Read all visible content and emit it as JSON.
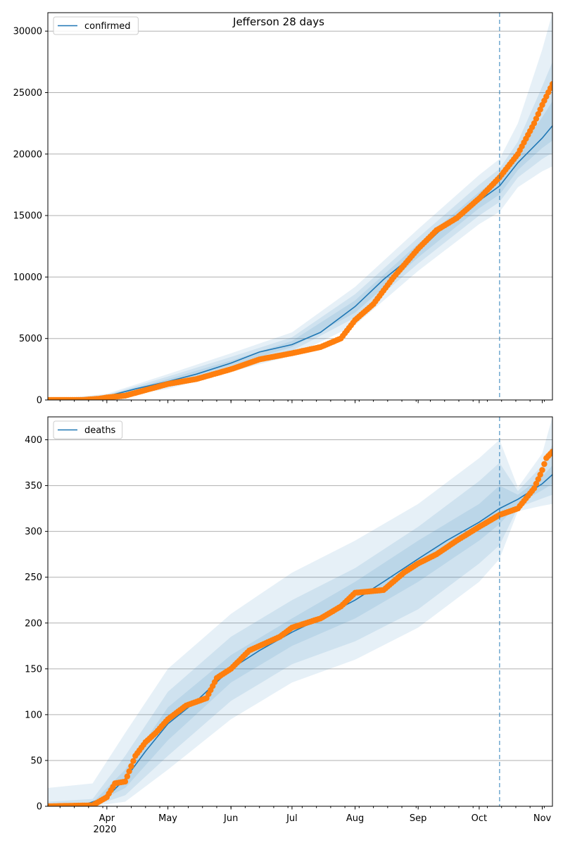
{
  "figure": {
    "title": "Jefferson 28 days",
    "year_label": "2020"
  },
  "chart_data": [
    {
      "name": "confirmed",
      "type": "line",
      "legend": "confirmed",
      "legend_position": "upper left",
      "grid": "horizontal",
      "xlim": [
        "2020-03-03",
        "2020-11-06"
      ],
      "ylim": [
        0,
        31500
      ],
      "yticks": [
        0,
        5000,
        10000,
        15000,
        20000,
        25000,
        30000
      ],
      "month_ticks": [
        {
          "date": "2020-04-01",
          "label": "Apr"
        },
        {
          "date": "2020-05-01",
          "label": "May"
        },
        {
          "date": "2020-06-01",
          "label": "Jun"
        },
        {
          "date": "2020-07-01",
          "label": "Jul"
        },
        {
          "date": "2020-08-01",
          "label": "Aug"
        },
        {
          "date": "2020-09-01",
          "label": "Sep"
        },
        {
          "date": "2020-10-01",
          "label": "Oct"
        },
        {
          "date": "2020-11-01",
          "label": "Nov"
        }
      ],
      "forecast_start": "2020-10-11",
      "colors": {
        "model": "#1f77b4",
        "observed": "#ff7f0e",
        "band": "#1f77b4"
      },
      "model": {
        "x": [
          "2020-03-03",
          "2020-03-20",
          "2020-04-01",
          "2020-04-15",
          "2020-05-01",
          "2020-05-15",
          "2020-06-01",
          "2020-06-15",
          "2020-07-01",
          "2020-07-15",
          "2020-08-01",
          "2020-08-15",
          "2020-09-01",
          "2020-09-15",
          "2020-10-01",
          "2020-10-11"
        ],
        "y": [
          0,
          50,
          300,
          900,
          1500,
          2100,
          3000,
          3900,
          4500,
          5500,
          7600,
          9800,
          12100,
          14300,
          16200,
          17400
        ]
      },
      "forecast": {
        "x": [
          "2020-10-11",
          "2020-10-20",
          "2020-11-01",
          "2020-11-06"
        ],
        "y": [
          17400,
          19300,
          21300,
          22300
        ]
      },
      "bands": [
        {
          "x": [
            "2020-03-03",
            "2020-04-01",
            "2020-05-01",
            "2020-06-01",
            "2020-07-01",
            "2020-08-01",
            "2020-09-01",
            "2020-10-01",
            "2020-10-11",
            "2020-10-20",
            "2020-11-01",
            "2020-11-06"
          ],
          "low": [
            0,
            100,
            900,
            2300,
            3600,
            6100,
            10500,
            14300,
            15300,
            17300,
            18600,
            19000
          ],
          "high": [
            0,
            500,
            2100,
            3800,
            5500,
            9200,
            13900,
            18300,
            19600,
            22500,
            28500,
            31500
          ]
        },
        {
          "x": [
            "2020-03-03",
            "2020-04-01",
            "2020-05-01",
            "2020-06-01",
            "2020-07-01",
            "2020-08-01",
            "2020-09-01",
            "2020-10-01",
            "2020-10-11",
            "2020-10-20",
            "2020-11-01",
            "2020-11-06"
          ],
          "low": [
            0,
            180,
            1100,
            2600,
            4000,
            6700,
            11100,
            15000,
            16100,
            18100,
            19600,
            20100
          ],
          "high": [
            0,
            420,
            1900,
            3500,
            5100,
            8600,
            13200,
            17500,
            18800,
            21000,
            25500,
            27500
          ]
        },
        {
          "x": [
            "2020-03-03",
            "2020-04-01",
            "2020-05-01",
            "2020-06-01",
            "2020-07-01",
            "2020-08-01",
            "2020-09-01",
            "2020-10-01",
            "2020-10-11",
            "2020-10-20",
            "2020-11-01",
            "2020-11-06"
          ],
          "low": [
            0,
            240,
            1300,
            2800,
            4300,
            7100,
            11600,
            15600,
            16700,
            18700,
            20500,
            21100
          ],
          "high": [
            0,
            360,
            1700,
            3200,
            4800,
            8100,
            12700,
            16900,
            18200,
            20200,
            23000,
            24300
          ]
        }
      ],
      "observed": {
        "anchors_x": [
          "2020-03-03",
          "2020-03-20",
          "2020-03-28",
          "2020-04-01",
          "2020-04-10",
          "2020-04-20",
          "2020-05-01",
          "2020-05-15",
          "2020-06-01",
          "2020-06-15",
          "2020-07-01",
          "2020-07-15",
          "2020-07-25",
          "2020-08-01",
          "2020-08-10",
          "2020-08-20",
          "2020-09-01",
          "2020-09-10",
          "2020-09-20",
          "2020-10-01",
          "2020-10-11",
          "2020-10-20",
          "2020-10-28",
          "2020-11-01",
          "2020-11-06"
        ],
        "anchors_y": [
          0,
          0,
          100,
          200,
          350,
          800,
          1300,
          1700,
          2500,
          3300,
          3800,
          4300,
          5000,
          6500,
          7800,
          10000,
          12300,
          13800,
          14800,
          16400,
          18100,
          20000,
          22500,
          24000,
          25700
        ]
      }
    },
    {
      "name": "deaths",
      "type": "line",
      "legend": "deaths",
      "legend_position": "upper left",
      "grid": "horizontal",
      "xlim": [
        "2020-03-03",
        "2020-11-06"
      ],
      "ylim": [
        0,
        425
      ],
      "yticks": [
        0,
        50,
        100,
        150,
        200,
        250,
        300,
        350,
        400
      ],
      "month_ticks": [
        {
          "date": "2020-04-01",
          "label": "Apr"
        },
        {
          "date": "2020-05-01",
          "label": "May"
        },
        {
          "date": "2020-06-01",
          "label": "Jun"
        },
        {
          "date": "2020-07-01",
          "label": "Jul"
        },
        {
          "date": "2020-08-01",
          "label": "Aug"
        },
        {
          "date": "2020-09-01",
          "label": "Sep"
        },
        {
          "date": "2020-10-01",
          "label": "Oct"
        },
        {
          "date": "2020-11-01",
          "label": "Nov"
        }
      ],
      "forecast_start": "2020-10-11",
      "colors": {
        "model": "#1f77b4",
        "observed": "#ff7f0e",
        "band": "#1f77b4"
      },
      "model": {
        "x": [
          "2020-03-03",
          "2020-03-20",
          "2020-04-01",
          "2020-04-10",
          "2020-04-20",
          "2020-05-01",
          "2020-05-15",
          "2020-06-01",
          "2020-06-15",
          "2020-07-01",
          "2020-07-15",
          "2020-08-01",
          "2020-08-15",
          "2020-09-01",
          "2020-09-15",
          "2020-10-01",
          "2020-10-11"
        ],
        "y": [
          0,
          1,
          10,
          30,
          60,
          90,
          115,
          150,
          170,
          190,
          205,
          225,
          245,
          270,
          290,
          310,
          325
        ]
      },
      "forecast": {
        "x": [
          "2020-10-11",
          "2020-10-20",
          "2020-11-01",
          "2020-11-06"
        ],
        "y": [
          325,
          335,
          352,
          362
        ]
      },
      "bands": [
        {
          "x": [
            "2020-03-03",
            "2020-03-25",
            "2020-04-10",
            "2020-05-01",
            "2020-06-01",
            "2020-07-01",
            "2020-08-01",
            "2020-09-01",
            "2020-10-01",
            "2020-10-11",
            "2020-10-20",
            "2020-11-01",
            "2020-11-06"
          ],
          "low": [
            0,
            0,
            5,
            40,
            95,
            135,
            160,
            195,
            245,
            270,
            322,
            328,
            330
          ],
          "high": [
            20,
            25,
            80,
            150,
            210,
            255,
            290,
            330,
            380,
            400,
            348,
            385,
            425
          ]
        },
        {
          "x": [
            "2020-03-03",
            "2020-03-25",
            "2020-04-10",
            "2020-05-01",
            "2020-06-01",
            "2020-07-01",
            "2020-08-01",
            "2020-09-01",
            "2020-10-01",
            "2020-10-11",
            "2020-10-20",
            "2020-11-01",
            "2020-11-06"
          ],
          "low": [
            0,
            0,
            12,
            55,
            115,
            155,
            180,
            215,
            265,
            285,
            326,
            336,
            340
          ],
          "high": [
            5,
            8,
            55,
            125,
            185,
            225,
            260,
            305,
            355,
            375,
            344,
            372,
            395
          ]
        },
        {
          "x": [
            "2020-03-03",
            "2020-03-25",
            "2020-04-10",
            "2020-05-01",
            "2020-06-01",
            "2020-07-01",
            "2020-08-01",
            "2020-09-01",
            "2020-10-01",
            "2020-10-11",
            "2020-10-20",
            "2020-11-01",
            "2020-11-06"
          ],
          "low": [
            0,
            2,
            20,
            72,
            135,
            175,
            205,
            245,
            290,
            308,
            330,
            345,
            352
          ],
          "high": [
            0,
            4,
            40,
            108,
            165,
            205,
            245,
            290,
            330,
            350,
            340,
            360,
            372
          ]
        }
      ],
      "observed": {
        "anchors_x": [
          "2020-03-03",
          "2020-03-25",
          "2020-04-01",
          "2020-04-05",
          "2020-04-10",
          "2020-04-15",
          "2020-04-20",
          "2020-04-25",
          "2020-05-01",
          "2020-05-10",
          "2020-05-20",
          "2020-05-25",
          "2020-06-01",
          "2020-06-10",
          "2020-06-15",
          "2020-06-25",
          "2020-07-01",
          "2020-07-15",
          "2020-07-25",
          "2020-08-01",
          "2020-08-15",
          "2020-08-25",
          "2020-09-01",
          "2020-09-10",
          "2020-09-20",
          "2020-10-01",
          "2020-10-11",
          "2020-10-20",
          "2020-10-28",
          "2020-11-01",
          "2020-11-03",
          "2020-11-06"
        ],
        "anchors_y": [
          0,
          1,
          10,
          25,
          27,
          55,
          70,
          80,
          95,
          110,
          118,
          140,
          150,
          170,
          175,
          185,
          195,
          205,
          218,
          233,
          236,
          255,
          265,
          275,
          290,
          305,
          318,
          325,
          347,
          367,
          380,
          387
        ]
      }
    }
  ]
}
